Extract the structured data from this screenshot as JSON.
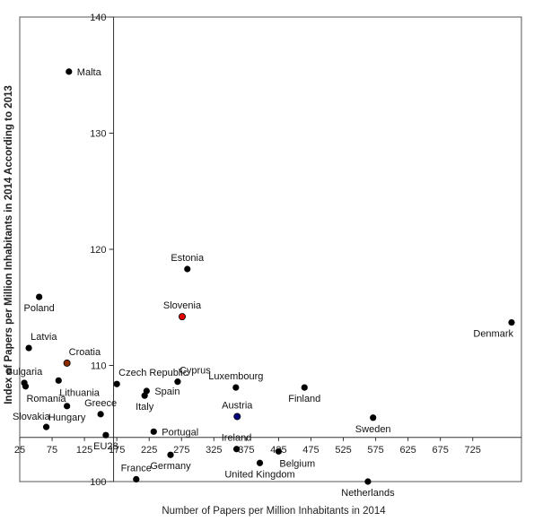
{
  "chart_data": {
    "type": "scatter",
    "title": "",
    "xlabel": "Number of Papers per Million Inhabitants in 2014",
    "ylabel": "Index of Papers per Million Inhabitants in 2014 According to 2013",
    "xlim": [
      25,
      785
    ],
    "ylim": [
      100,
      140
    ],
    "x_ticks": [
      25,
      75,
      125,
      175,
      225,
      275,
      325,
      375,
      425,
      475,
      525,
      575,
      625,
      675,
      725
    ],
    "y_ticks": [
      100,
      110,
      120,
      130,
      140
    ],
    "y_axis_crossing_x": 170,
    "x_axis_crossing_y": 103.8,
    "grid": false,
    "legend": "none",
    "colors": {
      "default": "#000000",
      "slovenia": "#e00000",
      "eu28": "#f0b400",
      "croatia": "#8b2d00",
      "austria": "#00007a",
      "sweden": "#0a3d14",
      "united_kingdom": "#3a3200"
    },
    "points": [
      {
        "name": "Malta",
        "x": 101,
        "y": 135.3,
        "label_pos": "right"
      },
      {
        "name": "Estonia",
        "x": 284,
        "y": 118.3,
        "label_pos": "above"
      },
      {
        "name": "Poland",
        "x": 55,
        "y": 115.9,
        "label_pos": "below"
      },
      {
        "name": "Slovenia",
        "x": 276,
        "y": 114.2,
        "label_pos": "above",
        "color": "#e00000"
      },
      {
        "name": "Denmark",
        "x": 785,
        "y": 113.7,
        "label_pos": "below-left"
      },
      {
        "name": "Latvia",
        "x": 39,
        "y": 111.5,
        "label_pos": "above-right"
      },
      {
        "name": "Croatia",
        "x": 98,
        "y": 110.2,
        "label_pos": "above-right",
        "color": "#8b2d00"
      },
      {
        "name": "Bulgaria",
        "x": 32,
        "y": 108.5,
        "label_pos": "above"
      },
      {
        "name": "Romania",
        "x": 34,
        "y": 108.2,
        "label_pos": "below-right"
      },
      {
        "name": "Lithuania",
        "x": 85,
        "y": 108.7,
        "label_pos": "below-right"
      },
      {
        "name": "Czech Republic",
        "x": 175,
        "y": 108.4,
        "label_pos": "above-right"
      },
      {
        "name": "Cyprus",
        "x": 269,
        "y": 108.6,
        "label_pos": "above-right"
      },
      {
        "name": "Luxembourg",
        "x": 359,
        "y": 108.1,
        "label_pos": "above"
      },
      {
        "name": "Finland",
        "x": 465,
        "y": 108.1,
        "label_pos": "below"
      },
      {
        "name": "Spain",
        "x": 221,
        "y": 107.8,
        "label_pos": "right"
      },
      {
        "name": "Italy",
        "x": 218,
        "y": 107.4,
        "label_pos": "below"
      },
      {
        "name": "Hungary",
        "x": 98,
        "y": 106.5,
        "label_pos": "below"
      },
      {
        "name": "Greece",
        "x": 150,
        "y": 105.8,
        "label_pos": "above"
      },
      {
        "name": "Austria",
        "x": 361,
        "y": 105.6,
        "label_pos": "above",
        "color": "#00007a"
      },
      {
        "name": "Sweden",
        "x": 571,
        "y": 105.5,
        "label_pos": "below"
      },
      {
        "name": "Slovakia",
        "x": 66,
        "y": 104.7,
        "label_pos": "above-left"
      },
      {
        "name": "Portugal",
        "x": 232,
        "y": 104.3,
        "label_pos": "right"
      },
      {
        "name": "EU28",
        "x": 158,
        "y": 104.0,
        "label_pos": "below"
      },
      {
        "name": "Ireland",
        "x": 360,
        "y": 102.8,
        "label_pos": "above"
      },
      {
        "name": "Germany",
        "x": 258,
        "y": 102.3,
        "label_pos": "below"
      },
      {
        "name": "Belgium",
        "x": 425,
        "y": 102.6,
        "label_pos": "below-right"
      },
      {
        "name": "United Kingdom",
        "x": 396,
        "y": 101.6,
        "label_pos": "below"
      },
      {
        "name": "France",
        "x": 205,
        "y": 100.2,
        "label_pos": "above"
      },
      {
        "name": "Netherlands",
        "x": 563,
        "y": 100.0,
        "label_pos": "below"
      }
    ]
  }
}
